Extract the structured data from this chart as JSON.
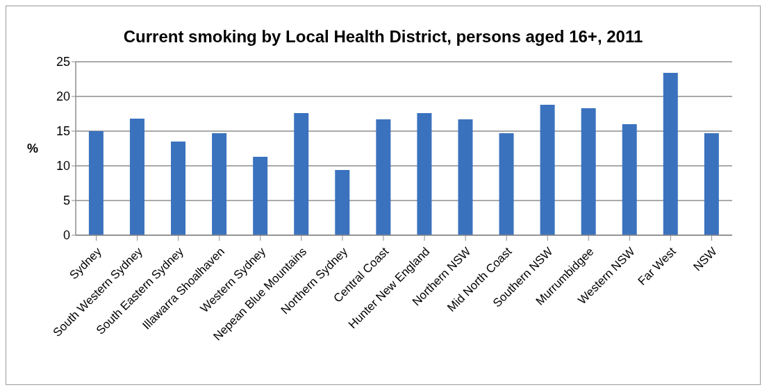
{
  "chart_data": {
    "type": "bar",
    "title": "Current smoking by Local Health District, persons aged 16+, 2011",
    "ylabel": "%",
    "categories": [
      "Sydney",
      "South Western Sydney",
      "South Eastern Sydney",
      "Illawarra Shoalhaven",
      "Western Sydney",
      "Nepean Blue Mountains",
      "Northern Sydney",
      "Central Coast",
      "Hunter New England",
      "Northern NSW",
      "Mid North Coast",
      "Southern NSW",
      "Murrumbidgee",
      "Western NSW",
      "Far West",
      "NSW"
    ],
    "values": [
      15.0,
      16.8,
      13.5,
      14.7,
      11.3,
      17.6,
      9.4,
      16.7,
      17.6,
      16.7,
      14.7,
      18.8,
      18.3,
      16.0,
      23.4,
      14.7
    ],
    "color": "#3a72be",
    "ylim": [
      0,
      25
    ],
    "yticks": [
      0,
      5,
      10,
      15,
      20,
      25
    ],
    "grid": "y"
  }
}
